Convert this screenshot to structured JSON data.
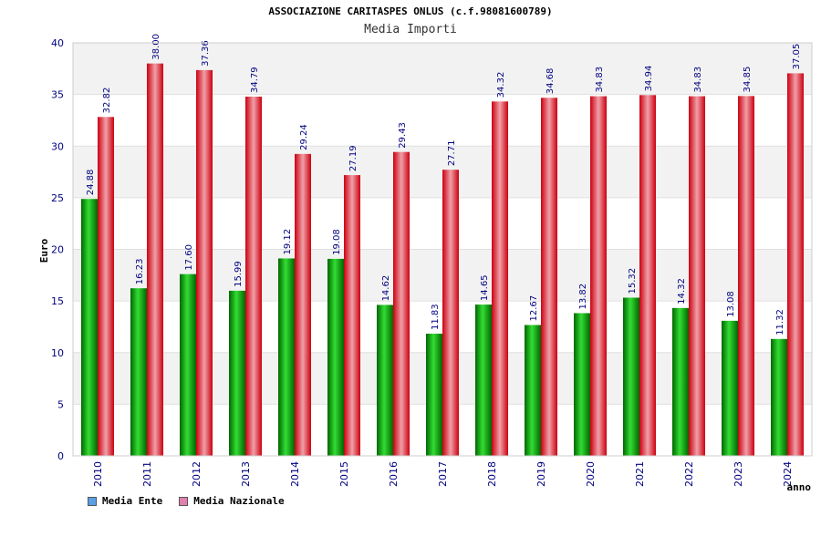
{
  "chart_data": {
    "type": "bar",
    "title": "ASSOCIAZIONE CARITASPES ONLUS (c.f.98081600789)",
    "subtitle": "Media Importi",
    "ylabel": "Euro",
    "xlabel": "anno",
    "ylim": [
      0,
      40
    ],
    "yticks": [
      0,
      5,
      10,
      15,
      20,
      25,
      30,
      35,
      40
    ],
    "grid": true,
    "legend_position": "bottom-left",
    "categories": [
      "2010",
      "2011",
      "2012",
      "2013",
      "2014",
      "2015",
      "2016",
      "2017",
      "2018",
      "2019",
      "2020",
      "2021",
      "2022",
      "2023",
      "2024"
    ],
    "series": [
      {
        "name": "Media Ente",
        "color": "#00a000",
        "legend_color": "#5aa0e6",
        "values": [
          24.88,
          16.23,
          17.6,
          15.99,
          19.12,
          19.08,
          14.62,
          11.83,
          14.65,
          12.67,
          13.82,
          15.32,
          14.32,
          13.08,
          11.32
        ],
        "labels": [
          "24.88",
          "16.23",
          "17.60",
          "15.99",
          "19.12",
          "19.08",
          "14.62",
          "11.83",
          "14.65",
          "12.67",
          "13.82",
          "15.32",
          "14.32",
          "13.08",
          "11.32"
        ]
      },
      {
        "name": "Media Nazionale",
        "color": "#e01020",
        "legend_color": "#e080b0",
        "values": [
          32.82,
          38.0,
          37.36,
          34.79,
          29.24,
          27.19,
          29.43,
          27.71,
          34.32,
          34.68,
          34.83,
          34.94,
          34.83,
          34.85,
          37.05
        ],
        "labels": [
          "32.82",
          "38.00",
          "37.36",
          "34.79",
          "29.24",
          "27.19",
          "29.43",
          "27.71",
          "34.32",
          "34.68",
          "34.83",
          "34.94",
          "34.83",
          "34.85",
          "37.05"
        ]
      }
    ]
  }
}
